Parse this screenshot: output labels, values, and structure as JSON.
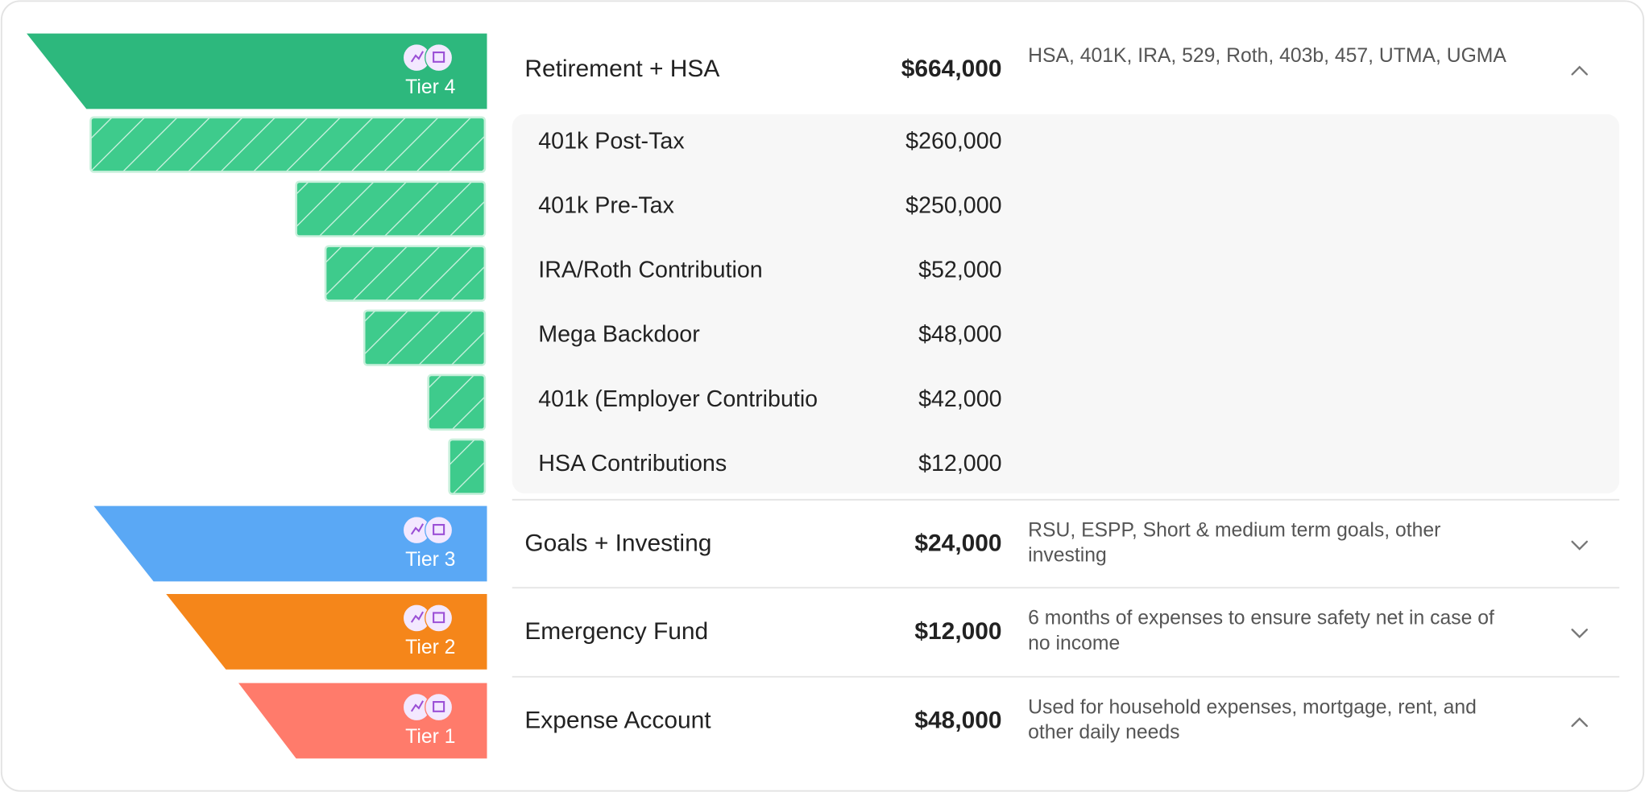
{
  "tiers": [
    {
      "badge": "Tier 4",
      "name": "Retirement + HSA",
      "amount": "$664,000",
      "description": "HSA, 401K, IRA, 529, Roth, 403b, 457, UTMA, UGMA",
      "items": [
        {
          "name": "401k Post-Tax",
          "amount": "$260,000"
        },
        {
          "name": "401k Pre-Tax",
          "amount": "$250,000"
        },
        {
          "name": "IRA/Roth Contribution",
          "amount": "$52,000"
        },
        {
          "name": "Mega Backdoor",
          "amount": "$48,000"
        },
        {
          "name": "401k (Employer Contributio",
          "amount": "$42,000"
        },
        {
          "name": "HSA Contributions",
          "amount": "$12,000"
        }
      ]
    },
    {
      "badge": "Tier 3",
      "name": "Goals + Investing",
      "amount": "$24,000",
      "description": "RSU, ESPP, Short & medium term goals, other investing"
    },
    {
      "badge": "Tier 2",
      "name": "Emergency Fund",
      "amount": "$12,000",
      "description": "6 months of expenses to ensure safety net in case of no income"
    },
    {
      "badge": "Tier 1",
      "name": "Expense Account",
      "amount": "$48,000",
      "description": "Used for household expenses, mortgage, rent, and other daily needs"
    }
  ]
}
